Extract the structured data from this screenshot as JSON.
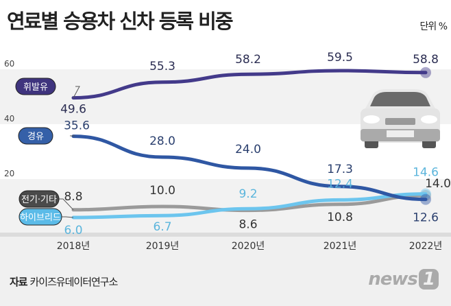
{
  "title": "연료별 승용차 신차 등록 비중",
  "unit": "단위 %",
  "source_label": "자료",
  "source": "카이즈유데이터연구소",
  "logo": {
    "text": "news",
    "number": "1"
  },
  "chart_data": {
    "type": "line",
    "categories": [
      "2018년",
      "2019년",
      "2020년",
      "2021년",
      "2022년"
    ],
    "ylim": [
      0,
      60
    ],
    "yticks": [
      20,
      40,
      60
    ],
    "grid": "alternating bands",
    "series": [
      {
        "name": "휘발유",
        "values": [
          49.6,
          55.3,
          58.2,
          59.5,
          58.8
        ],
        "color": "#433a8a",
        "label_color": "#2b2d52"
      },
      {
        "name": "경유",
        "values": [
          35.6,
          28.0,
          24.0,
          17.3,
          12.6
        ],
        "color": "#2f57a3",
        "label_color": "#2a3f6e"
      },
      {
        "name": "전기·기타",
        "values": [
          8.8,
          10.0,
          8.6,
          10.8,
          14.0
        ],
        "color": "#9a9a9a",
        "label_color": "#333333"
      },
      {
        "name": "하이브리드",
        "values": [
          6.0,
          6.7,
          9.2,
          12.4,
          14.6
        ],
        "color": "#6cc5ee",
        "label_color": "#5bb5dc"
      }
    ]
  }
}
